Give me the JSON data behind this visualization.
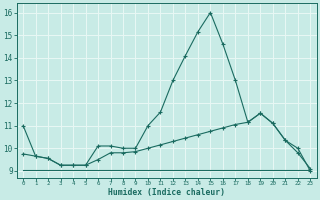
{
  "xlabel": "Humidex (Indice chaleur)",
  "background_color": "#c8ebe6",
  "grid_color": "#e8f8f5",
  "line_color": "#1a6b60",
  "xlim": [
    -0.5,
    23.5
  ],
  "ylim": [
    8.7,
    16.4
  ],
  "xticks": [
    0,
    1,
    2,
    3,
    4,
    5,
    6,
    7,
    8,
    9,
    10,
    11,
    12,
    13,
    14,
    15,
    16,
    17,
    18,
    19,
    20,
    21,
    22,
    23
  ],
  "yticks": [
    9,
    10,
    11,
    12,
    13,
    14,
    15,
    16
  ],
  "line1_x": [
    0,
    1,
    2,
    3,
    4,
    5,
    6,
    7,
    8,
    9,
    10,
    11,
    12,
    13,
    14,
    15,
    16,
    17,
    18,
    19,
    20,
    21,
    22,
    23
  ],
  "line1_y": [
    11.0,
    9.65,
    9.55,
    9.25,
    9.25,
    9.25,
    10.1,
    10.1,
    10.0,
    10.0,
    11.0,
    11.6,
    13.0,
    14.1,
    15.15,
    16.0,
    14.6,
    13.0,
    11.15,
    11.55,
    11.1,
    10.35,
    10.0,
    9.0
  ],
  "line2_x": [
    0,
    1,
    2,
    3,
    4,
    5,
    6,
    7,
    8,
    9,
    10,
    11,
    12,
    13,
    14,
    15,
    16,
    17,
    18,
    19,
    20,
    21,
    22,
    23
  ],
  "line2_y": [
    9.75,
    9.65,
    9.55,
    9.25,
    9.25,
    9.25,
    9.5,
    9.8,
    9.8,
    9.85,
    10.0,
    10.15,
    10.3,
    10.45,
    10.6,
    10.75,
    10.9,
    11.05,
    11.15,
    11.55,
    11.1,
    10.35,
    9.8,
    9.1
  ],
  "line3_x": [
    0,
    1,
    2,
    3,
    4,
    5,
    6,
    7,
    8,
    9,
    10,
    11,
    12,
    13,
    14,
    15,
    16,
    17,
    18,
    19,
    20,
    21,
    22,
    23
  ],
  "line3_y": [
    9.05,
    9.05,
    9.05,
    9.05,
    9.05,
    9.05,
    9.05,
    9.05,
    9.05,
    9.05,
    9.05,
    9.05,
    9.05,
    9.05,
    9.05,
    9.05,
    9.05,
    9.05,
    9.05,
    9.05,
    9.05,
    9.05,
    9.05,
    9.05
  ]
}
